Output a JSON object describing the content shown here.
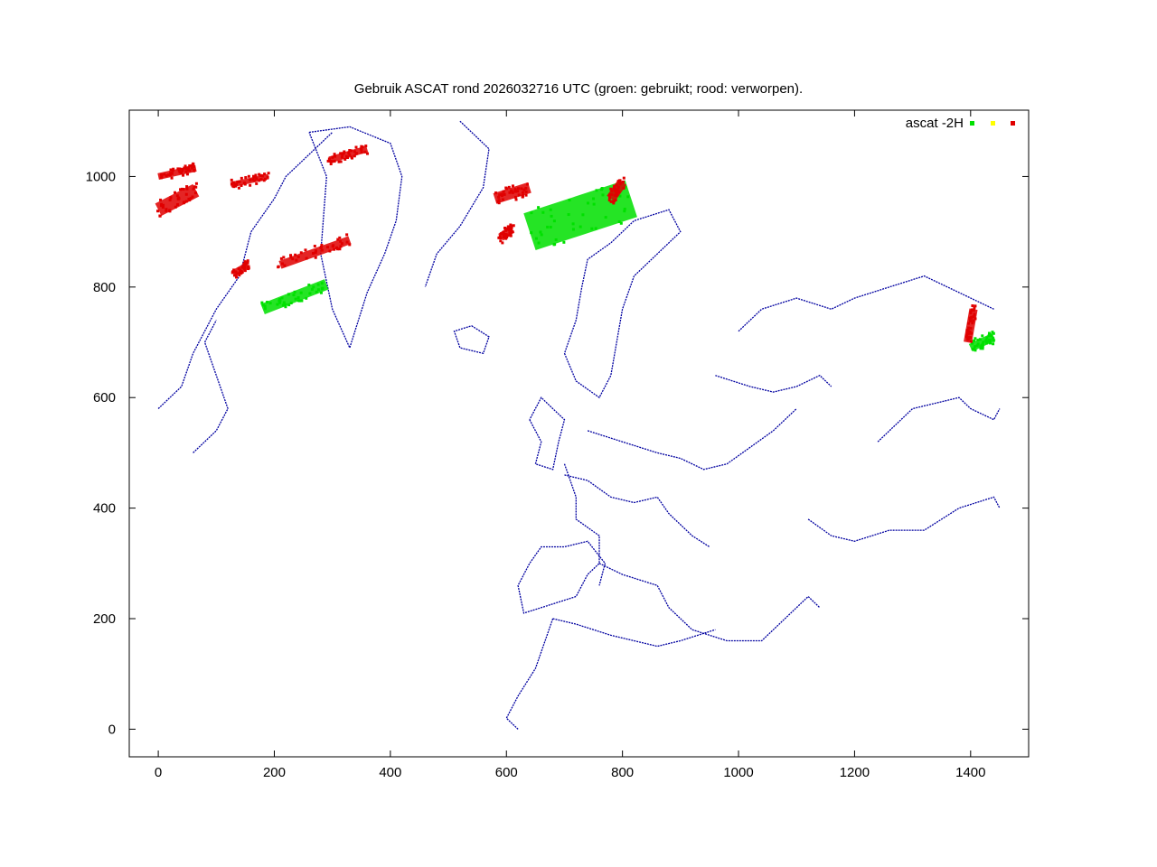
{
  "chart_data": {
    "type": "scatter",
    "title": "Gebruik ASCAT rond 2026032716 UTC (groen: gebruikt; rood: verworpen).",
    "xlim": [
      -50,
      1500
    ],
    "ylim": [
      -50,
      1120
    ],
    "x_ticks": [
      0,
      200,
      400,
      600,
      800,
      1000,
      1200,
      1400
    ],
    "y_ticks": [
      0,
      200,
      400,
      600,
      800,
      1000
    ],
    "x_tick_labels": [
      "0",
      "200",
      "400",
      "600",
      "800",
      "1000",
      "1200",
      "1400"
    ],
    "y_tick_labels": [
      "0",
      "200",
      "400",
      "600",
      "800",
      "1000"
    ],
    "legend": {
      "label": "ascat -2H",
      "position": "top-right"
    },
    "colors": {
      "coastline": "#0000a0",
      "used": "#00e000",
      "yellow": "#ffff00",
      "rejected": "#e00000"
    },
    "series": [
      {
        "color": "used",
        "swaths": [
          {
            "x": [
              180,
              290
            ],
            "y": [
              760,
              805
            ],
            "w": 20
          },
          {
            "x": [
              640,
              815
            ],
            "y": [
              900,
              960
            ],
            "w": 70
          },
          {
            "x": [
              1400,
              1440
            ],
            "y": [
              690,
              710
            ],
            "w": 15
          }
        ]
      },
      {
        "color": "rejected",
        "swaths": [
          {
            "x": [
              0,
              65
            ],
            "y": [
              940,
              975
            ],
            "w": 25
          },
          {
            "x": [
              0,
              65
            ],
            "y": [
              1000,
              1015
            ],
            "w": 12
          },
          {
            "x": [
              125,
              190
            ],
            "y": [
              985,
              1000
            ],
            "w": 10
          },
          {
            "x": [
              295,
              360
            ],
            "y": [
              1030,
              1050
            ],
            "w": 12
          },
          {
            "x": [
              210,
              330
            ],
            "y": [
              840,
              885
            ],
            "w": 15
          },
          {
            "x": [
              130,
              155
            ],
            "y": [
              825,
              840
            ],
            "w": 12
          },
          {
            "x": [
              580,
              640
            ],
            "y": [
              960,
              980
            ],
            "w": 20
          },
          {
            "x": [
              590,
              610
            ],
            "y": [
              890,
              905
            ],
            "w": 15
          },
          {
            "x": [
              780,
              800
            ],
            "y": [
              960,
              990
            ],
            "w": 18
          },
          {
            "x": [
              1395,
              1405
            ],
            "y": [
              700,
              760
            ],
            "w": 15
          }
        ]
      }
    ],
    "coastline": [
      {
        "points": [
          [
            260,
            1080
          ],
          [
            330,
            1090
          ],
          [
            400,
            1060
          ],
          [
            420,
            1000
          ],
          [
            410,
            920
          ],
          [
            390,
            860
          ],
          [
            360,
            790
          ],
          [
            330,
            690
          ],
          [
            300,
            760
          ],
          [
            280,
            860
          ],
          [
            290,
            1000
          ],
          [
            260,
            1080
          ]
        ]
      },
      {
        "points": [
          [
            520,
            1100
          ],
          [
            570,
            1050
          ],
          [
            560,
            980
          ],
          [
            520,
            910
          ],
          [
            480,
            860
          ],
          [
            460,
            800
          ]
        ]
      },
      {
        "points": [
          [
            540,
            730
          ],
          [
            570,
            710
          ],
          [
            560,
            680
          ],
          [
            520,
            690
          ],
          [
            510,
            720
          ],
          [
            540,
            730
          ]
        ]
      },
      {
        "points": [
          [
            700,
            680
          ],
          [
            720,
            630
          ],
          [
            760,
            600
          ],
          [
            780,
            640
          ],
          [
            790,
            700
          ],
          [
            800,
            760
          ],
          [
            820,
            820
          ],
          [
            860,
            860
          ],
          [
            900,
            900
          ],
          [
            880,
            940
          ],
          [
            820,
            920
          ],
          [
            780,
            880
          ],
          [
            740,
            850
          ],
          [
            730,
            800
          ],
          [
            720,
            740
          ],
          [
            700,
            680
          ]
        ]
      },
      {
        "points": [
          [
            640,
            560
          ],
          [
            660,
            520
          ],
          [
            650,
            480
          ],
          [
            680,
            470
          ],
          [
            690,
            520
          ],
          [
            700,
            560
          ],
          [
            680,
            580
          ],
          [
            660,
            600
          ],
          [
            640,
            560
          ]
        ]
      },
      {
        "points": [
          [
            700,
            460
          ],
          [
            740,
            450
          ],
          [
            780,
            420
          ],
          [
            820,
            410
          ],
          [
            860,
            420
          ],
          [
            880,
            390
          ],
          [
            920,
            350
          ],
          [
            950,
            330
          ]
        ]
      },
      {
        "points": [
          [
            700,
            480
          ],
          [
            720,
            420
          ],
          [
            720,
            380
          ],
          [
            760,
            350
          ],
          [
            760,
            300
          ],
          [
            740,
            280
          ],
          [
            720,
            240
          ],
          [
            660,
            220
          ],
          [
            630,
            210
          ],
          [
            620,
            260
          ],
          [
            640,
            300
          ],
          [
            660,
            330
          ],
          [
            700,
            330
          ],
          [
            740,
            340
          ],
          [
            770,
            300
          ],
          [
            760,
            260
          ]
        ]
      },
      {
        "points": [
          [
            760,
            300
          ],
          [
            800,
            280
          ],
          [
            860,
            260
          ],
          [
            880,
            220
          ],
          [
            920,
            180
          ],
          [
            980,
            160
          ],
          [
            1040,
            160
          ],
          [
            1080,
            200
          ],
          [
            1120,
            240
          ],
          [
            1140,
            220
          ]
        ]
      },
      {
        "points": [
          [
            680,
            200
          ],
          [
            720,
            190
          ],
          [
            780,
            170
          ],
          [
            820,
            160
          ],
          [
            860,
            150
          ],
          [
            900,
            160
          ],
          [
            960,
            180
          ]
        ]
      },
      {
        "points": [
          [
            680,
            200
          ],
          [
            670,
            170
          ],
          [
            660,
            140
          ],
          [
            650,
            110
          ],
          [
            620,
            60
          ],
          [
            600,
            20
          ],
          [
            620,
            0
          ]
        ]
      },
      {
        "points": [
          [
            740,
            540
          ],
          [
            800,
            520
          ],
          [
            860,
            500
          ],
          [
            900,
            490
          ],
          [
            940,
            470
          ],
          [
            980,
            480
          ],
          [
            1020,
            510
          ],
          [
            1060,
            540
          ],
          [
            1100,
            580
          ]
        ]
      },
      {
        "points": [
          [
            960,
            640
          ],
          [
            990,
            630
          ],
          [
            1020,
            620
          ],
          [
            1060,
            610
          ],
          [
            1100,
            620
          ],
          [
            1140,
            640
          ],
          [
            1160,
            620
          ]
        ]
      },
      {
        "points": [
          [
            1240,
            520
          ],
          [
            1300,
            580
          ],
          [
            1380,
            600
          ],
          [
            1400,
            580
          ],
          [
            1440,
            560
          ],
          [
            1450,
            580
          ]
        ]
      },
      {
        "points": [
          [
            1120,
            380
          ],
          [
            1160,
            350
          ],
          [
            1200,
            340
          ],
          [
            1260,
            360
          ],
          [
            1320,
            360
          ],
          [
            1380,
            400
          ],
          [
            1440,
            420
          ],
          [
            1450,
            400
          ]
        ]
      },
      {
        "points": [
          [
            0,
            580
          ],
          [
            40,
            620
          ],
          [
            60,
            680
          ],
          [
            100,
            760
          ],
          [
            140,
            820
          ],
          [
            160,
            900
          ],
          [
            200,
            960
          ],
          [
            220,
            1000
          ],
          [
            260,
            1040
          ],
          [
            300,
            1080
          ]
        ]
      },
      {
        "points": [
          [
            60,
            500
          ],
          [
            100,
            540
          ],
          [
            120,
            580
          ],
          [
            100,
            640
          ],
          [
            80,
            700
          ],
          [
            100,
            740
          ]
        ]
      },
      {
        "points": [
          [
            1000,
            720
          ],
          [
            1040,
            760
          ],
          [
            1100,
            780
          ],
          [
            1160,
            760
          ],
          [
            1200,
            780
          ],
          [
            1260,
            800
          ],
          [
            1320,
            820
          ],
          [
            1380,
            790
          ],
          [
            1440,
            760
          ]
        ]
      }
    ]
  }
}
